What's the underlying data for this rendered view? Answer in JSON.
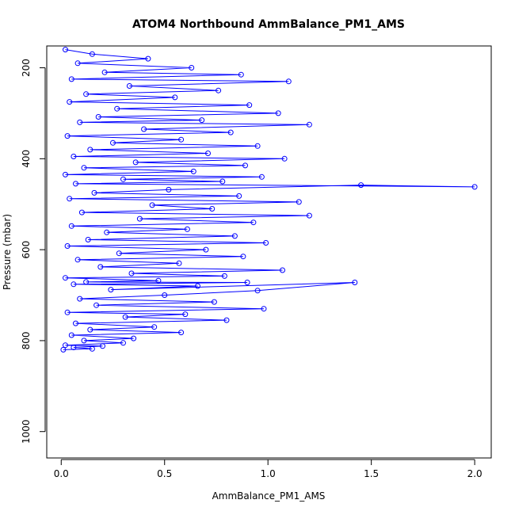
{
  "chart_data": {
    "type": "scatter",
    "title": "ATOM4 Northbound AmmBalance_PM1_AMS",
    "xlabel": "AmmBalance_PM1_AMS",
    "ylabel": "Pressure (mbar)",
    "xlim": [
      -0.07,
      2.08
    ],
    "ylim": [
      1058,
      152
    ],
    "y_reversed": true,
    "x_ticks": [
      0.0,
      0.5,
      1.0,
      1.5,
      2.0
    ],
    "x_tick_labels": [
      "0.0",
      "0.5",
      "1.0",
      "1.5",
      "2.0"
    ],
    "y_ticks": [
      200,
      400,
      600,
      800,
      1000
    ],
    "y_tick_labels": [
      "200",
      "400",
      "600",
      "800",
      "1000"
    ],
    "grid": false,
    "legend": "none",
    "point_style": "open-circle-with-connecting-lines",
    "color": "#0000ff",
    "series": [
      {
        "x": [
          0.02,
          0.15,
          0.42,
          0.08,
          0.63,
          0.21,
          0.87,
          0.05,
          1.1,
          0.33,
          0.76,
          0.12,
          0.55,
          0.04,
          0.91,
          0.27,
          1.05,
          0.18,
          0.68,
          0.09,
          1.2,
          0.4,
          0.82,
          0.03,
          0.58,
          0.25,
          0.95,
          0.14,
          0.71,
          0.06,
          1.08,
          0.36,
          0.89,
          0.11,
          0.64,
          0.02,
          0.97,
          0.3,
          0.78,
          0.07,
          2.0,
          1.45,
          0.52,
          0.16,
          0.86,
          0.04,
          1.15,
          0.44,
          0.73,
          0.1,
          1.2,
          0.38,
          0.93,
          0.05,
          0.61,
          0.22,
          0.84,
          0.13,
          0.99,
          0.03,
          0.7,
          0.28,
          0.88,
          0.08,
          0.57,
          0.19,
          1.07,
          0.34,
          0.79,
          0.02,
          0.47,
          0.12,
          0.9,
          0.06,
          0.66,
          0.24,
          1.42,
          0.95,
          0.5,
          0.09,
          0.74,
          0.17,
          0.98,
          0.03,
          0.6,
          0.31,
          0.8,
          0.07,
          0.45,
          0.14,
          0.58,
          0.05,
          0.35,
          0.11,
          0.3,
          0.02,
          0.2,
          0.06,
          0.15,
          0.01
        ],
        "y": [
          160,
          170,
          180,
          190,
          200,
          210,
          215,
          225,
          230,
          240,
          250,
          258,
          265,
          275,
          282,
          290,
          300,
          308,
          315,
          320,
          325,
          335,
          342,
          350,
          358,
          365,
          372,
          380,
          388,
          395,
          400,
          408,
          415,
          420,
          428,
          435,
          440,
          445,
          450,
          455,
          462,
          458,
          468,
          475,
          482,
          488,
          495,
          502,
          510,
          518,
          525,
          532,
          540,
          548,
          555,
          562,
          570,
          578,
          585,
          592,
          600,
          608,
          615,
          622,
          630,
          638,
          645,
          652,
          658,
          662,
          668,
          671,
          672,
          676,
          680,
          688,
          672,
          690,
          700,
          708,
          715,
          722,
          730,
          738,
          742,
          748,
          755,
          762,
          770,
          776,
          782,
          788,
          795,
          800,
          805,
          810,
          812,
          815,
          818,
          820
        ]
      }
    ]
  }
}
